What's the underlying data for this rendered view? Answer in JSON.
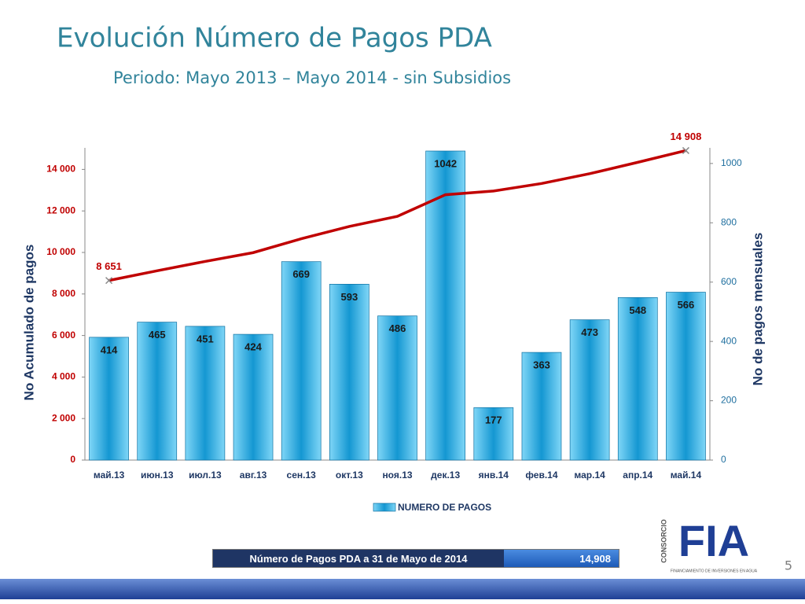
{
  "title": "Evolución Número de Pagos PDA",
  "subtitle": "Periodo: Mayo 2013 – Mayo 2014 - sin Subsidios",
  "chart_data": {
    "type": "combo",
    "categories": [
      "май.13",
      "июн.13",
      "июл.13",
      "авг.13",
      "сен.13",
      "окт.13",
      "ноя.13",
      "дек.13",
      "янв.14",
      "фев.14",
      "мар.14",
      "апр.14",
      "май.14"
    ],
    "ylabel": "No Acumulado de pagos",
    "y2label": "No de pagos mensuales",
    "ylim": [
      0,
      15000
    ],
    "yticks": [
      0,
      {
        "value": 2000,
        "label": "2 000"
      },
      {
        "value": 4000,
        "label": "4 000"
      },
      {
        "value": 6000,
        "label": "6 000"
      },
      {
        "value": 8000,
        "label": "8 000"
      },
      {
        "value": 10000,
        "label": "10 000"
      },
      {
        "value": 12000,
        "label": "12 000"
      },
      {
        "value": 14000,
        "label": "14 000"
      }
    ],
    "y2lim": [
      0,
      1050
    ],
    "y2ticks": [
      0,
      200,
      400,
      600,
      800,
      1000
    ],
    "legend": "bottom",
    "series": [
      {
        "name": "NUMERO DE PAGOS",
        "type": "bar",
        "axis": "y2",
        "color": "#1aa6de",
        "values": [
          414,
          465,
          451,
          424,
          669,
          593,
          486,
          1042,
          177,
          363,
          473,
          548,
          566
        ]
      },
      {
        "type": "line",
        "axis": "y",
        "color": "#c00000",
        "values": [
          8651,
          9116,
          9567,
          9991,
          10660,
          11253,
          11739,
          12781,
          12958,
          13321,
          13794,
          14342,
          14908
        ],
        "value_labels": [
          "8 651",
          null,
          null,
          null,
          null,
          null,
          null,
          null,
          null,
          null,
          null,
          null,
          "14 908"
        ]
      }
    ]
  },
  "summary": {
    "label": "Número de Pagos PDA a 31 de Mayo de 2014",
    "value": "14,908"
  },
  "logo": {
    "word": "FIA",
    "side": "CONSORCIO",
    "tagline": "FINANCIAMIENTO DE INVERSIONES EN AGUA"
  },
  "page_number": "5"
}
